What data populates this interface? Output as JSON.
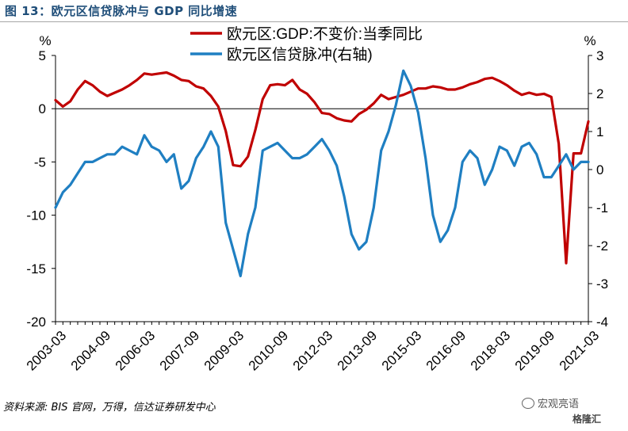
{
  "figure": {
    "label": "图 13：",
    "title": "欧元区信贷脉冲与 GDP 同比增速"
  },
  "source": "资料来源: BIS 官网，万得，信达证券研发中心",
  "watermark": {
    "line1": "宏观亮语",
    "line2": "格隆汇"
  },
  "chart_data": {
    "type": "line",
    "left_axis_unit": "%",
    "right_axis_unit": "%",
    "ylim_left": [
      -20,
      5
    ],
    "ylim_right": [
      -4,
      3
    ],
    "yticks_left": [
      5,
      0,
      -5,
      -10,
      -15,
      -20
    ],
    "yticks_right": [
      3,
      2,
      1,
      0,
      -1,
      -2,
      -3,
      -4
    ],
    "xtick_labels": [
      "2003-03",
      "2004-09",
      "2006-03",
      "2007-09",
      "2009-03",
      "2010-09",
      "2012-03",
      "2013-09",
      "2015-03",
      "2016-09",
      "2018-03",
      "2019-09",
      "2021-03"
    ],
    "x": [
      "2003-03",
      "2003-06",
      "2003-09",
      "2003-12",
      "2004-03",
      "2004-06",
      "2004-09",
      "2004-12",
      "2005-03",
      "2005-06",
      "2005-09",
      "2005-12",
      "2006-03",
      "2006-06",
      "2006-09",
      "2006-12",
      "2007-03",
      "2007-06",
      "2007-09",
      "2007-12",
      "2008-03",
      "2008-06",
      "2008-09",
      "2008-12",
      "2009-03",
      "2009-06",
      "2009-09",
      "2009-12",
      "2010-03",
      "2010-06",
      "2010-09",
      "2010-12",
      "2011-03",
      "2011-06",
      "2011-09",
      "2011-12",
      "2012-03",
      "2012-06",
      "2012-09",
      "2012-12",
      "2013-03",
      "2013-06",
      "2013-09",
      "2013-12",
      "2014-03",
      "2014-06",
      "2014-09",
      "2014-12",
      "2015-03",
      "2015-06",
      "2015-09",
      "2015-12",
      "2016-03",
      "2016-06",
      "2016-09",
      "2016-12",
      "2017-03",
      "2017-06",
      "2017-09",
      "2017-12",
      "2018-03",
      "2018-06",
      "2018-09",
      "2018-12",
      "2019-03",
      "2019-06",
      "2019-09",
      "2019-12",
      "2020-03",
      "2020-06",
      "2020-09",
      "2020-12",
      "2021-03"
    ],
    "series": [
      {
        "name": "欧元区:GDP:不变价:当季同比",
        "axis": "left",
        "color": "#c00000",
        "values": [
          0.8,
          0.2,
          0.7,
          1.8,
          2.6,
          2.2,
          1.6,
          1.2,
          1.5,
          1.8,
          2.2,
          2.7,
          3.3,
          3.2,
          3.3,
          3.4,
          3.1,
          2.7,
          2.6,
          2.1,
          1.9,
          1.2,
          0.2,
          -2.1,
          -5.3,
          -5.4,
          -4.5,
          -2.0,
          0.9,
          2.2,
          2.3,
          2.2,
          2.7,
          1.8,
          1.4,
          0.6,
          -0.4,
          -0.5,
          -0.9,
          -1.1,
          -1.2,
          -0.5,
          -0.1,
          0.5,
          1.3,
          0.9,
          1.1,
          1.3,
          1.6,
          1.9,
          1.9,
          2.1,
          2.0,
          1.8,
          1.8,
          2.0,
          2.3,
          2.5,
          2.8,
          2.9,
          2.6,
          2.2,
          1.7,
          1.3,
          1.5,
          1.3,
          1.4,
          1.1,
          -3.3,
          -14.5,
          -4.2,
          -4.2,
          -1.2
        ]
      },
      {
        "name": "欧元区信贷脉冲(右轴)",
        "axis": "right",
        "color": "#1f7fc2",
        "values": [
          -1.0,
          -0.6,
          -0.4,
          -0.1,
          0.2,
          0.2,
          0.3,
          0.4,
          0.4,
          0.6,
          0.5,
          0.4,
          0.9,
          0.6,
          0.5,
          0.2,
          0.4,
          -0.5,
          -0.3,
          0.3,
          0.6,
          1.0,
          0.6,
          -1.4,
          -2.1,
          -2.8,
          -1.7,
          -1.0,
          0.5,
          0.6,
          0.7,
          0.5,
          0.3,
          0.3,
          0.4,
          0.6,
          0.8,
          0.5,
          0.1,
          -0.7,
          -1.7,
          -2.1,
          -1.9,
          -1.0,
          0.5,
          1.0,
          1.7,
          2.6,
          2.2,
          1.5,
          0.3,
          -1.2,
          -1.9,
          -1.6,
          -1.0,
          0.2,
          0.5,
          0.3,
          -0.4,
          0.0,
          0.6,
          0.5,
          0.1,
          0.6,
          0.7,
          0.4,
          -0.2,
          -0.2,
          0.1,
          0.4,
          0.0,
          0.2,
          0.2
        ]
      }
    ],
    "grid": false,
    "legend_position": "top"
  }
}
